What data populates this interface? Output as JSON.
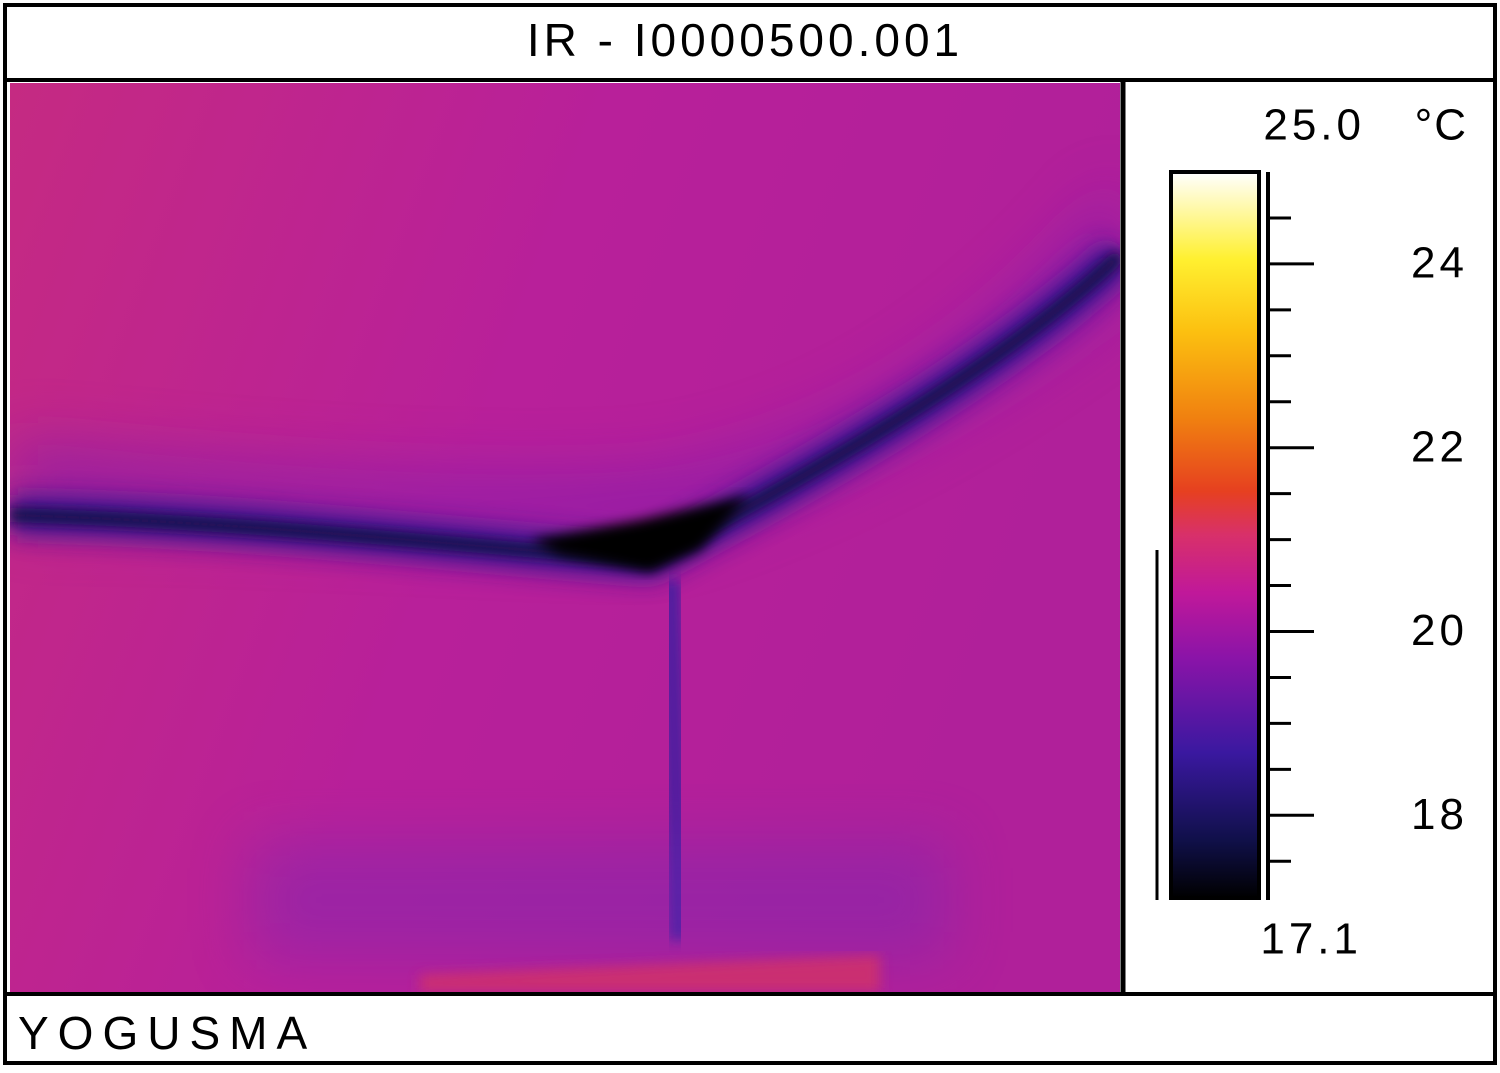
{
  "header": {
    "title": "IR - I0000500.001"
  },
  "scale": {
    "max": {
      "value": 25.0,
      "label": "25.0"
    },
    "min": 17.1,
    "unit": "°C",
    "ticks": [
      24,
      22,
      20,
      18
    ],
    "minor_ticks": [
      24.5,
      23.5,
      23,
      22.5,
      21.5,
      21,
      20.5,
      19.5,
      19,
      18.5,
      17.5
    ]
  },
  "footer": {
    "text": "YOGUSMA"
  }
}
